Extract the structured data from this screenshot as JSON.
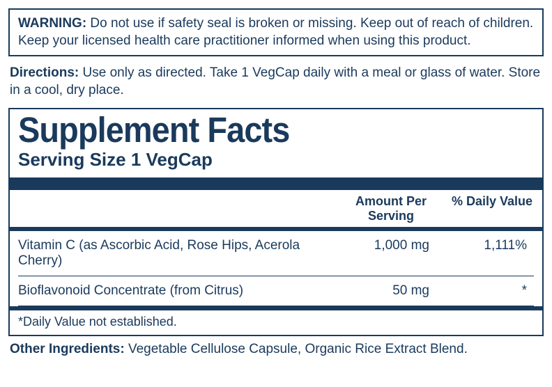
{
  "warning": {
    "label": "WARNING:",
    "text": " Do not use if safety seal is broken or missing. Keep out of reach of children. Keep your licensed health care practitioner informed when using this product."
  },
  "directions": {
    "label": "Directions:",
    "text": " Use only as directed. Take 1 VegCap daily with a meal or glass of water. Store in a cool, dry place."
  },
  "facts": {
    "title": "Supplement Facts",
    "serving": "Serving Size 1 VegCap",
    "header_amount": "Amount Per Serving",
    "header_dv": "% Daily Value",
    "rows": [
      {
        "name": "Vitamin C (as Ascorbic Acid, Rose Hips, Acerola Cherry)",
        "amount": "1,000 mg",
        "dv": "1,111%"
      },
      {
        "name": "Bioflavonoid Concentrate (from Citrus)",
        "amount": "50 mg",
        "dv": "*"
      }
    ],
    "footnote": "*Daily Value not established."
  },
  "other": {
    "label": "Other Ingredients:",
    "text": " Vegetable Cellulose Capsule, Organic Rice Extract Blend."
  },
  "colors": {
    "text": "#1a3a5c",
    "border": "#1a3a5c",
    "background": "#ffffff"
  }
}
